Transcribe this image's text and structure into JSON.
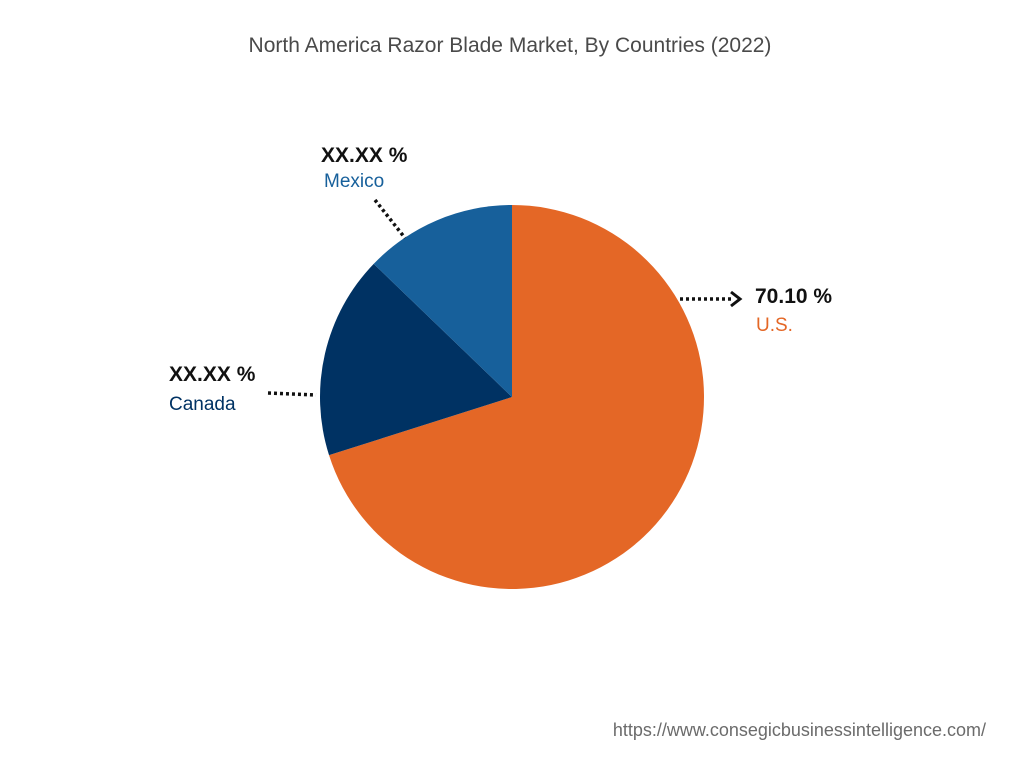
{
  "chart_data": {
    "type": "pie",
    "title": "North America Razor Blade Market, By Countries (2022)",
    "slices": [
      {
        "label": "U.S.",
        "value_label": "70.10 %",
        "value": 70.1,
        "color": "#E46726"
      },
      {
        "label": "Canada",
        "value_label": "XX.XX %",
        "value": 17.1,
        "color": "#003263"
      },
      {
        "label": "Mexico",
        "value_label": "XX.XX %",
        "value": 12.8,
        "color": "#17609B"
      }
    ],
    "start_angle_deg": 0,
    "direction": "clockwise",
    "legend": "none"
  },
  "footer": {
    "source_url": "https://www.consegicbusinessintelligence.com/"
  }
}
